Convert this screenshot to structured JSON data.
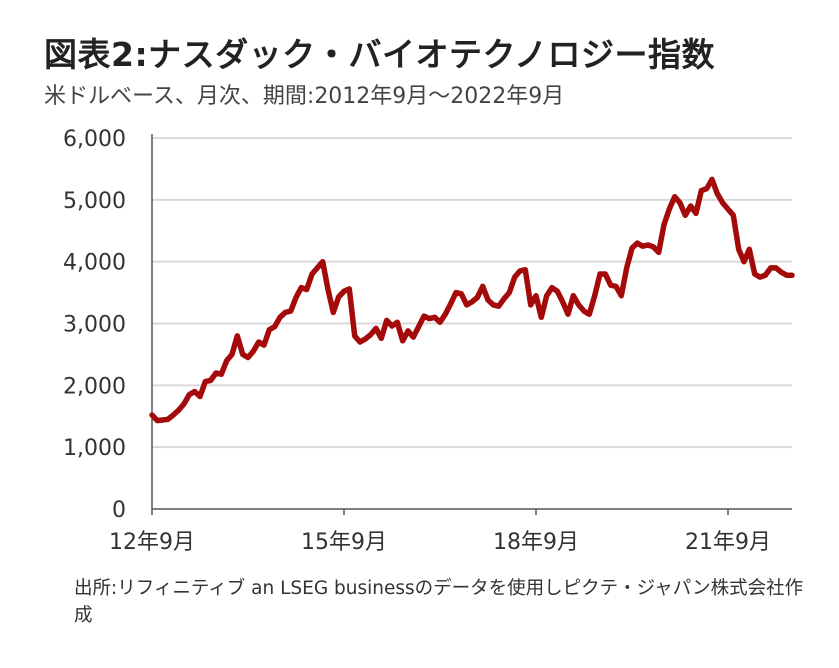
{
  "title": "図表2:ナスダック・バイオテクノロジー指数",
  "subtitle": "米ドルベース、月次、期間:2012年9月～2022年9月",
  "source_note": "出所:リフィニティブ an LSEG businessのデータを使用しピクテ・ジャパン株式会社作成",
  "colors": {
    "line": "#a50a0a",
    "grid": "#d9d9d9",
    "axis": "#555555"
  },
  "chart_data": {
    "type": "line",
    "x_start": "2012-09",
    "x_end": "2022-09",
    "x_tick_labels": [
      "12年9月",
      "15年9月",
      "18年9月",
      "21年9月"
    ],
    "x_tick_dates": [
      "2012-09",
      "2015-09",
      "2018-09",
      "2021-09"
    ],
    "y_ticks": [
      0,
      1000,
      2000,
      3000,
      4000,
      5000,
      6000
    ],
    "y_tick_labels": [
      "0",
      "1,000",
      "2,000",
      "3,000",
      "4,000",
      "5,000",
      "6,000"
    ],
    "ylim": [
      0,
      6000
    ],
    "grid": true,
    "series": [
      {
        "values": [
          1520,
          1430,
          1440,
          1450,
          1520,
          1600,
          1700,
          1850,
          1900,
          1820,
          2060,
          2080,
          2200,
          2180,
          2400,
          2500,
          2800,
          2500,
          2450,
          2550,
          2700,
          2650,
          2900,
          2950,
          3100,
          3180,
          3200,
          3420,
          3580,
          3550,
          3800,
          3900,
          4000,
          3550,
          3180,
          3430,
          3520,
          3560,
          2800,
          2700,
          2750,
          2820,
          2920,
          2760,
          3050,
          2960,
          3020,
          2720,
          2880,
          2780,
          2950,
          3120,
          3080,
          3100,
          3020,
          3150,
          3320,
          3500,
          3480,
          3300,
          3350,
          3420,
          3600,
          3380,
          3300,
          3280,
          3400,
          3500,
          3750,
          3850,
          3870,
          3300,
          3450,
          3100,
          3450,
          3580,
          3520,
          3350,
          3150,
          3450,
          3300,
          3200,
          3150,
          3450,
          3800,
          3800,
          3620,
          3600,
          3450,
          3900,
          4220,
          4300,
          4250,
          4270,
          4240,
          4150,
          4600,
          4850,
          5050,
          4950,
          4750,
          4900,
          4780,
          5150,
          5180,
          5330,
          5100,
          4950,
          4850,
          4750,
          4200,
          4000,
          4200,
          3800,
          3750,
          3780,
          3900,
          3900,
          3830,
          3780,
          3780
        ]
      }
    ]
  }
}
